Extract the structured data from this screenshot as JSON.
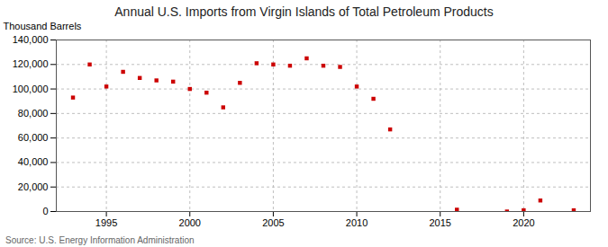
{
  "chart_data": {
    "type": "scatter",
    "title": "Annual U.S. Imports from Virgin Islands of Total Petroleum Products",
    "ylabel": "Thousand Barrels",
    "source": "Source: U.S. Energy Information Administration",
    "x": [
      1993,
      1994,
      1995,
      1996,
      1997,
      1998,
      1999,
      2000,
      2001,
      2002,
      2003,
      2004,
      2005,
      2006,
      2007,
      2008,
      2009,
      2010,
      2011,
      2012,
      2016,
      2019,
      2020,
      2021,
      2023
    ],
    "values": [
      93000,
      120000,
      102000,
      114000,
      109000,
      107000,
      106000,
      100000,
      97000,
      85000,
      105000,
      121000,
      120000,
      119000,
      125000,
      119000,
      118000,
      102000,
      92000,
      67000,
      1500,
      0,
      1000,
      9000,
      1000
    ],
    "color": "#cc0000",
    "marker": "square",
    "xlim": [
      1992,
      2024
    ],
    "xticks": [
      1995,
      2000,
      2005,
      2010,
      2015,
      2020
    ],
    "ylim": [
      0,
      140000
    ],
    "yticks": [
      0,
      {
        "value": 20000,
        "label": "20,000"
      },
      {
        "value": 40000,
        "label": "40,000"
      },
      {
        "value": 60000,
        "label": "60,000"
      },
      {
        "value": 80000,
        "label": "80,000"
      },
      {
        "value": 100000,
        "label": "100,000"
      },
      {
        "value": 120000,
        "label": "120,000"
      },
      {
        "value": 140000,
        "label": "140,000"
      }
    ],
    "grid": true
  }
}
